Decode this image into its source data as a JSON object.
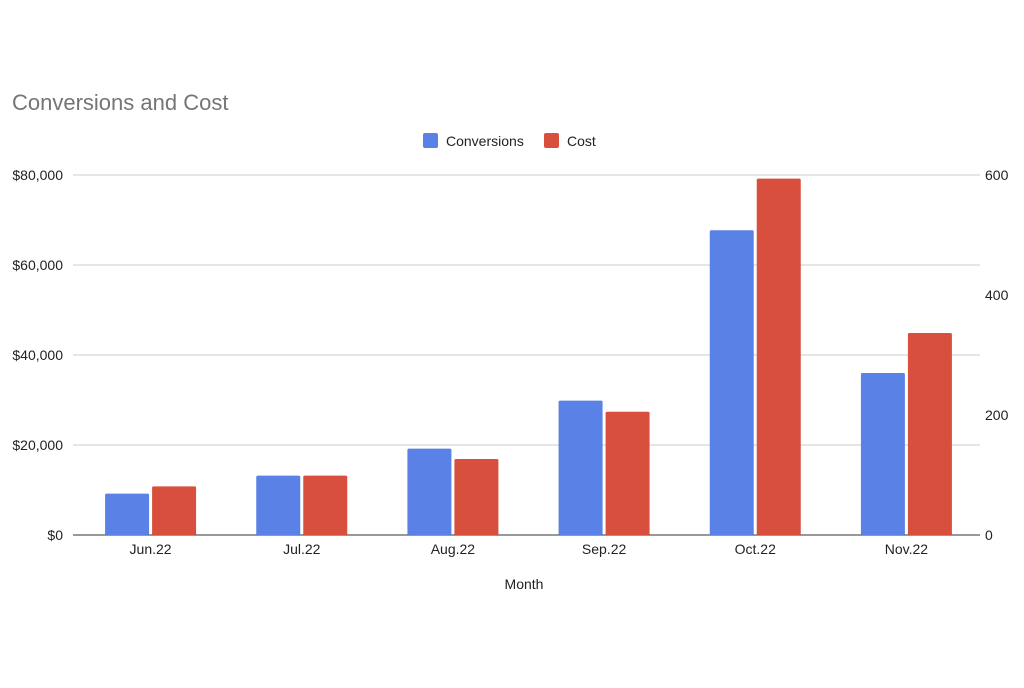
{
  "chart_data": {
    "type": "bar",
    "title": "Conversions and Cost",
    "xlabel": "Month",
    "ylabel": "",
    "ylabel_right": "",
    "categories": [
      "Jun.22",
      "Jul.22",
      "Aug.22",
      "Sep.22",
      "Oct.22",
      "Nov.22"
    ],
    "series": [
      {
        "name": "Conversions",
        "axis": "right",
        "color": "#5a82e6",
        "values": [
          69,
          99,
          144,
          224,
          508,
          270
        ]
      },
      {
        "name": "Cost",
        "axis": "left",
        "color": "#d94f3d",
        "values": [
          10800,
          13200,
          16900,
          27400,
          79200,
          44900
        ]
      }
    ],
    "ylim_left": [
      0,
      80000
    ],
    "ylim_right": [
      0,
      600
    ],
    "left_ticks": [
      "$0",
      "$20,000",
      "$40,000",
      "$60,000",
      "$80,000"
    ],
    "left_tick_values": [
      0,
      20000,
      40000,
      60000,
      80000
    ],
    "right_ticks": [
      "0",
      "200",
      "400",
      "600"
    ],
    "right_tick_values": [
      0,
      200,
      400,
      600
    ],
    "grid": true,
    "legend_position": "top-center"
  }
}
